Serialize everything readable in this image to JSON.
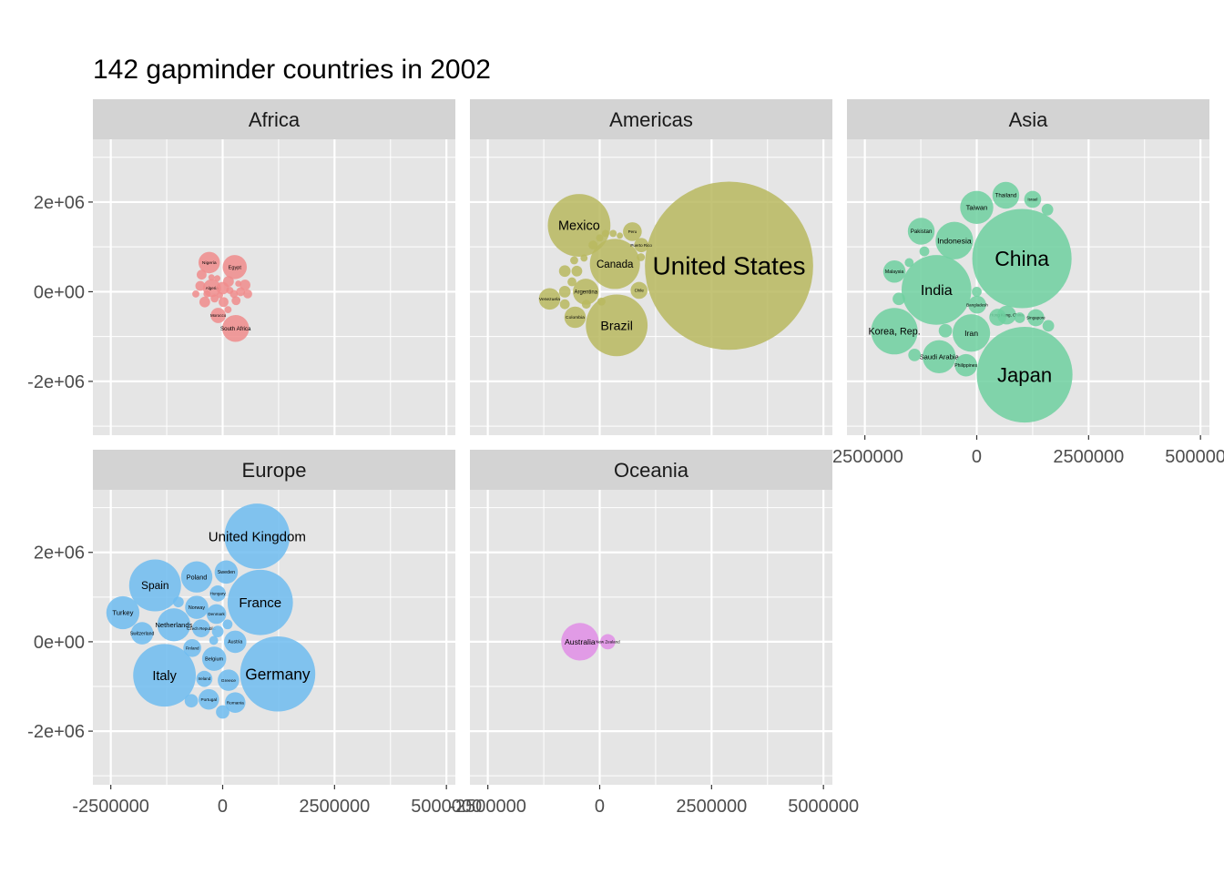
{
  "title": "142 gapminder countries in 2002",
  "colors": {
    "panel_bg": "#e5e5e5",
    "strip_bg": "#d3d3d3",
    "grid": "#ffffff",
    "Africa": "#f08c8c",
    "Americas": "#b9b95f",
    "Asia": "#6fd0a0",
    "Europe": "#6fbcf0",
    "Oceania": "#e08ee6"
  },
  "chart_data": {
    "type": "packed-bubble",
    "facet_by": "continent",
    "xlim": [
      -2900000,
      5200000
    ],
    "ylim": [
      -3200000,
      3400000
    ],
    "x_ticks": [
      {
        "value": -2500000,
        "label": "-2500000"
      },
      {
        "value": 0,
        "label": "0"
      },
      {
        "value": 2500000,
        "label": "2500000"
      },
      {
        "value": 5000000,
        "label": "5000000"
      }
    ],
    "y_ticks": [
      {
        "value": 2000000,
        "label": "2e+06"
      },
      {
        "value": 0,
        "label": "0e+00"
      },
      {
        "value": -2000000,
        "label": "-2e+06"
      }
    ],
    "panels": [
      {
        "name": "Africa",
        "bubbles": [
          {
            "label": "Nigeria",
            "x": -300000,
            "y": 650000,
            "r": 240000
          },
          {
            "label": "Egypt",
            "x": 270000,
            "y": 550000,
            "r": 270000
          },
          {
            "label": "South Africa",
            "x": 290000,
            "y": -820000,
            "r": 300000
          },
          {
            "label": "Algeria",
            "x": -240000,
            "y": 80000,
            "r": 200000
          },
          {
            "label": "Morocco",
            "x": -100000,
            "y": -530000,
            "r": 170000
          },
          {
            "label": "",
            "x": 0,
            "y": 80000,
            "r": 140000
          },
          {
            "label": "",
            "x": 130000,
            "y": 230000,
            "r": 120000
          },
          {
            "label": "",
            "x": -470000,
            "y": 380000,
            "r": 110000
          },
          {
            "label": "",
            "x": -500000,
            "y": 130000,
            "r": 110000
          },
          {
            "label": "",
            "x": -400000,
            "y": -230000,
            "r": 120000
          },
          {
            "label": "",
            "x": 20000,
            "y": -230000,
            "r": 110000
          },
          {
            "label": "",
            "x": 300000,
            "y": -200000,
            "r": 100000
          },
          {
            "label": "",
            "x": 500000,
            "y": 150000,
            "r": 120000
          },
          {
            "label": "",
            "x": 560000,
            "y": -50000,
            "r": 100000
          },
          {
            "label": "",
            "x": 400000,
            "y": 0,
            "r": 100000
          },
          {
            "label": "",
            "x": 250000,
            "y": -50000,
            "r": 90000
          },
          {
            "label": "",
            "x": -180000,
            "y": -150000,
            "r": 90000
          },
          {
            "label": "",
            "x": -600000,
            "y": -50000,
            "r": 80000
          },
          {
            "label": "",
            "x": 120000,
            "y": -400000,
            "r": 80000
          },
          {
            "label": "",
            "x": -250000,
            "y": 320000,
            "r": 70000
          },
          {
            "label": "",
            "x": -120000,
            "y": 300000,
            "r": 70000
          },
          {
            "label": "",
            "x": 350000,
            "y": 180000,
            "r": 70000
          },
          {
            "label": "",
            "x": -350000,
            "y": -50000,
            "r": 80000
          },
          {
            "label": "",
            "x": 160000,
            "y": 30000,
            "r": 80000
          },
          {
            "label": "",
            "x": -60000,
            "y": -80000,
            "r": 70000
          }
        ]
      },
      {
        "name": "Americas",
        "bubbles": [
          {
            "label": "United States",
            "x": 2890000,
            "y": 580000,
            "r": 1880000
          },
          {
            "label": "Mexico",
            "x": -460000,
            "y": 1480000,
            "r": 700000
          },
          {
            "label": "Canada",
            "x": 340000,
            "y": 620000,
            "r": 560000
          },
          {
            "label": "Brazil",
            "x": 380000,
            "y": -750000,
            "r": 690000
          },
          {
            "label": "Argentina",
            "x": -310000,
            "y": 0,
            "r": 290000
          },
          {
            "label": "Colombia",
            "x": -550000,
            "y": -570000,
            "r": 240000
          },
          {
            "label": "Venezuela",
            "x": -1120000,
            "y": -160000,
            "r": 240000
          },
          {
            "label": "Chile",
            "x": 880000,
            "y": 30000,
            "r": 190000
          },
          {
            "label": "Peru",
            "x": 730000,
            "y": 1340000,
            "r": 210000
          },
          {
            "label": "Puerto Rico",
            "x": 930000,
            "y": 1040000,
            "r": 160000
          },
          {
            "label": "",
            "x": -780000,
            "y": 460000,
            "r": 130000
          },
          {
            "label": "",
            "x": -510000,
            "y": 460000,
            "r": 120000
          },
          {
            "label": "",
            "x": -780000,
            "y": 0,
            "r": 130000
          },
          {
            "label": "",
            "x": -780000,
            "y": -280000,
            "r": 110000
          },
          {
            "label": "",
            "x": -620000,
            "y": 220000,
            "r": 100000
          },
          {
            "label": "",
            "x": -570000,
            "y": 700000,
            "r": 90000
          },
          {
            "label": "",
            "x": -350000,
            "y": 750000,
            "r": 80000
          },
          {
            "label": "",
            "x": -150000,
            "y": 1040000,
            "r": 100000
          },
          {
            "label": "",
            "x": 130000,
            "y": 1300000,
            "r": 80000
          },
          {
            "label": "",
            "x": 300000,
            "y": 1300000,
            "r": 80000
          },
          {
            "label": "",
            "x": 450000,
            "y": 1250000,
            "r": 70000
          },
          {
            "label": "",
            "x": 920000,
            "y": 770000,
            "r": 90000
          },
          {
            "label": "",
            "x": 40000,
            "y": -220000,
            "r": 90000
          },
          {
            "label": "",
            "x": -300000,
            "y": -280000,
            "r": 100000
          },
          {
            "label": "",
            "x": 0,
            "y": 1200000,
            "r": 80000
          }
        ]
      },
      {
        "name": "Asia",
        "bubbles": [
          {
            "label": "China",
            "x": 1010000,
            "y": 740000,
            "r": 1110000
          },
          {
            "label": "Japan",
            "x": 1070000,
            "y": -1850000,
            "r": 1070000
          },
          {
            "label": "India",
            "x": -900000,
            "y": 40000,
            "r": 780000
          },
          {
            "label": "Korea, Rep.",
            "x": -1840000,
            "y": -880000,
            "r": 520000
          },
          {
            "label": "Indonesia",
            "x": -500000,
            "y": 1140000,
            "r": 420000
          },
          {
            "label": "Iran",
            "x": -120000,
            "y": -920000,
            "r": 420000
          },
          {
            "label": "Saudi Arabia",
            "x": -840000,
            "y": -1450000,
            "r": 370000
          },
          {
            "label": "Taiwan",
            "x": 0,
            "y": 1880000,
            "r": 370000
          },
          {
            "label": "Thailand",
            "x": 650000,
            "y": 2150000,
            "r": 300000
          },
          {
            "label": "Pakistan",
            "x": -1240000,
            "y": 1350000,
            "r": 300000
          },
          {
            "label": "Malaysia",
            "x": -1840000,
            "y": 450000,
            "r": 250000
          },
          {
            "label": "Philippines",
            "x": -240000,
            "y": -1640000,
            "r": 250000
          },
          {
            "label": "Israel",
            "x": 1250000,
            "y": 2060000,
            "r": 190000
          },
          {
            "label": "Hong Kong, China",
            "x": 670000,
            "y": -520000,
            "r": 210000
          },
          {
            "label": "Singapore",
            "x": 1320000,
            "y": -580000,
            "r": 190000
          },
          {
            "label": "Bangladesh",
            "x": 10000,
            "y": -290000,
            "r": 200000
          },
          {
            "label": "",
            "x": 470000,
            "y": -570000,
            "r": 190000
          },
          {
            "label": "",
            "x": -1390000,
            "y": -1410000,
            "r": 140000
          },
          {
            "label": "",
            "x": -1740000,
            "y": -160000,
            "r": 140000
          },
          {
            "label": "",
            "x": -700000,
            "y": -870000,
            "r": 150000
          },
          {
            "label": "",
            "x": 1580000,
            "y": 1830000,
            "r": 130000
          },
          {
            "label": "",
            "x": 1600000,
            "y": -760000,
            "r": 130000
          },
          {
            "label": "",
            "x": -1170000,
            "y": 900000,
            "r": 110000
          },
          {
            "label": "",
            "x": -1510000,
            "y": 650000,
            "r": 100000
          },
          {
            "label": "",
            "x": 0,
            "y": 0,
            "r": 110000
          },
          {
            "label": "",
            "x": 960000,
            "y": -580000,
            "r": 120000
          }
        ]
      },
      {
        "name": "Europe",
        "bubbles": [
          {
            "label": "United Kingdom",
            "x": 770000,
            "y": 2360000,
            "r": 730000
          },
          {
            "label": "France",
            "x": 840000,
            "y": 880000,
            "r": 730000
          },
          {
            "label": "Germany",
            "x": 1230000,
            "y": -720000,
            "r": 840000
          },
          {
            "label": "Italy",
            "x": -1300000,
            "y": -750000,
            "r": 700000
          },
          {
            "label": "Spain",
            "x": -1510000,
            "y": 1260000,
            "r": 580000
          },
          {
            "label": "Turkey",
            "x": -2230000,
            "y": 650000,
            "r": 370000
          },
          {
            "label": "Netherlands",
            "x": -1090000,
            "y": 380000,
            "r": 370000
          },
          {
            "label": "Poland",
            "x": -580000,
            "y": 1450000,
            "r": 350000
          },
          {
            "label": "Switzerland",
            "x": -1800000,
            "y": 190000,
            "r": 250000
          },
          {
            "label": "Belgium",
            "x": -190000,
            "y": -380000,
            "r": 270000
          },
          {
            "label": "Greece",
            "x": 130000,
            "y": -860000,
            "r": 240000
          },
          {
            "label": "Sweden",
            "x": 80000,
            "y": 1560000,
            "r": 260000
          },
          {
            "label": "Austria",
            "x": 280000,
            "y": 0,
            "r": 250000
          },
          {
            "label": "Romania",
            "x": 280000,
            "y": -1360000,
            "r": 230000
          },
          {
            "label": "Portugal",
            "x": -310000,
            "y": -1290000,
            "r": 230000
          },
          {
            "label": "Norway",
            "x": -580000,
            "y": 770000,
            "r": 260000
          },
          {
            "label": "Denmark",
            "x": -140000,
            "y": 620000,
            "r": 220000
          },
          {
            "label": "Czech Republic",
            "x": -480000,
            "y": 300000,
            "r": 200000
          },
          {
            "label": "Finland",
            "x": -680000,
            "y": -140000,
            "r": 200000
          },
          {
            "label": "Ireland",
            "x": -410000,
            "y": -830000,
            "r": 180000
          },
          {
            "label": "Hungary",
            "x": -110000,
            "y": 1080000,
            "r": 180000
          },
          {
            "label": "",
            "x": -700000,
            "y": -1320000,
            "r": 150000
          },
          {
            "label": "",
            "x": 0,
            "y": -1570000,
            "r": 150000
          },
          {
            "label": "",
            "x": -990000,
            "y": 890000,
            "r": 120000
          },
          {
            "label": "",
            "x": -110000,
            "y": 230000,
            "r": 130000
          },
          {
            "label": "",
            "x": 110000,
            "y": 390000,
            "r": 110000
          },
          {
            "label": "",
            "x": -200000,
            "y": 30000,
            "r": 100000
          }
        ]
      },
      {
        "name": "Oceania",
        "bubbles": [
          {
            "label": "Australia",
            "x": -440000,
            "y": 0,
            "r": 420000
          },
          {
            "label": "New Zealand",
            "x": 180000,
            "y": 0,
            "r": 170000
          }
        ]
      }
    ]
  }
}
